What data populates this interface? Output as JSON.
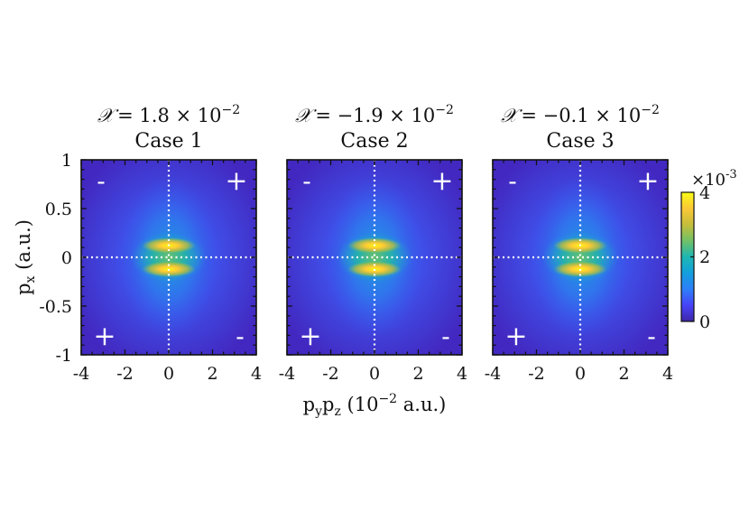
{
  "chart_data": {
    "type": "heatmap",
    "panels": [
      {
        "name": "Case 1",
        "chi_value": " = 1.8 × 10",
        "chi_exp": "−2"
      },
      {
        "name": "Case 2",
        "chi_value": " = −1.9 × 10",
        "chi_exp": "−2"
      },
      {
        "name": "Case 3",
        "chi_value": " = −0.1 × 10",
        "chi_exp": "−2"
      }
    ],
    "chi_symbol": "𝒳",
    "ylabel": {
      "main": "p",
      "sub": "x",
      "unit": " (a.u.)"
    },
    "xlabel": {
      "p1": "p",
      "s1": "y",
      "p2": "p",
      "s2": "z",
      "pre": " (10",
      "exp": "−2",
      "post": " a.u.)"
    },
    "xlim": [
      -4,
      4
    ],
    "ylim": [
      -1,
      1
    ],
    "xticks": [
      -4,
      -2,
      0,
      2,
      4
    ],
    "xtick_labels": [
      "-4",
      "-2",
      "0",
      "2",
      "4"
    ],
    "yticks": [
      1,
      0.5,
      0,
      -0.5,
      -1
    ],
    "ytick_labels": [
      "1",
      "0.5",
      "0",
      "-0.5",
      "-1"
    ],
    "quadrant_signs": {
      "top_left": "-",
      "top_right": "+",
      "bottom_left": "+",
      "bottom_right": "-"
    },
    "colorbar": {
      "range": [
        0,
        4
      ],
      "multiplier": "×10",
      "multiplier_exp": "-3",
      "ticks": [
        4,
        2,
        0
      ],
      "tick_labels": [
        "4",
        "2",
        "0"
      ],
      "colormap": [
        "#3e26a8",
        "#4743f8",
        "#2d7ff9",
        "#139fdd",
        "#1eb7b2",
        "#72c166",
        "#c5bd3b",
        "#fbc837",
        "#f9fb15"
      ]
    },
    "peaks": [
      {
        "x": 0.0,
        "y": 0.11,
        "value": 4.0
      },
      {
        "x": 0.0,
        "y": -0.11,
        "value": 4.0
      }
    ],
    "grid": false,
    "guide_lines": "dotted white lines at x = 0 and y = 0"
  }
}
